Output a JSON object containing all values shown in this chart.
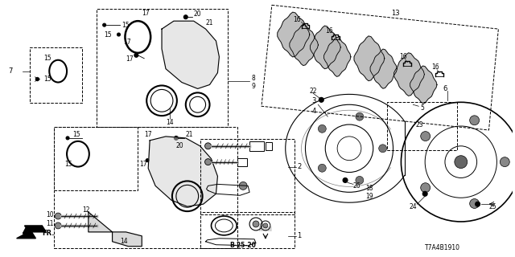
{
  "bg_color": "#ffffff",
  "diagram_code": "T7A4B1910",
  "figsize": [
    6.4,
    3.2
  ],
  "dpi": 100
}
